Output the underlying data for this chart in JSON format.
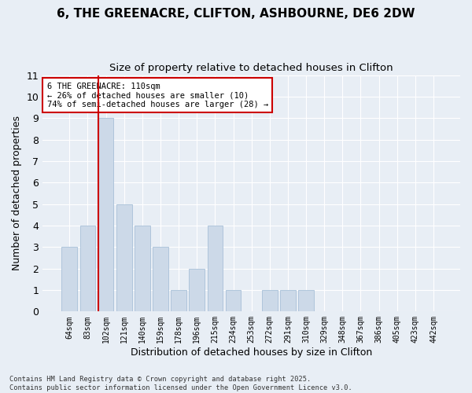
{
  "title1": "6, THE GREENACRE, CLIFTON, ASHBOURNE, DE6 2DW",
  "title2": "Size of property relative to detached houses in Clifton",
  "xlabel": "Distribution of detached houses by size in Clifton",
  "ylabel": "Number of detached properties",
  "categories": [
    "64sqm",
    "83sqm",
    "102sqm",
    "121sqm",
    "140sqm",
    "159sqm",
    "178sqm",
    "196sqm",
    "215sqm",
    "234sqm",
    "253sqm",
    "272sqm",
    "291sqm",
    "310sqm",
    "329sqm",
    "348sqm",
    "367sqm",
    "386sqm",
    "405sqm",
    "423sqm",
    "442sqm"
  ],
  "values": [
    3,
    4,
    9,
    5,
    4,
    3,
    1,
    2,
    4,
    1,
    0,
    1,
    1,
    1,
    0,
    0,
    0,
    0,
    0,
    0,
    0
  ],
  "bar_color": "#ccd9e8",
  "bar_edge_color": "#a8c0d8",
  "redline_x": 2.0,
  "annotation_text": "6 THE GREENACRE: 110sqm\n← 26% of detached houses are smaller (10)\n74% of semi-detached houses are larger (28) →",
  "annotation_box_color": "#ffffff",
  "annotation_box_edge": "#cc0000",
  "redline_color": "#cc0000",
  "ylim": [
    0,
    11
  ],
  "yticks": [
    0,
    1,
    2,
    3,
    4,
    5,
    6,
    7,
    8,
    9,
    10,
    11
  ],
  "footnote": "Contains HM Land Registry data © Crown copyright and database right 2025.\nContains public sector information licensed under the Open Government Licence v3.0.",
  "background_color": "#e8eef5",
  "plot_background": "#e8eef5",
  "grid_color": "#ffffff",
  "title_fontsize": 11,
  "subtitle_fontsize": 9.5
}
